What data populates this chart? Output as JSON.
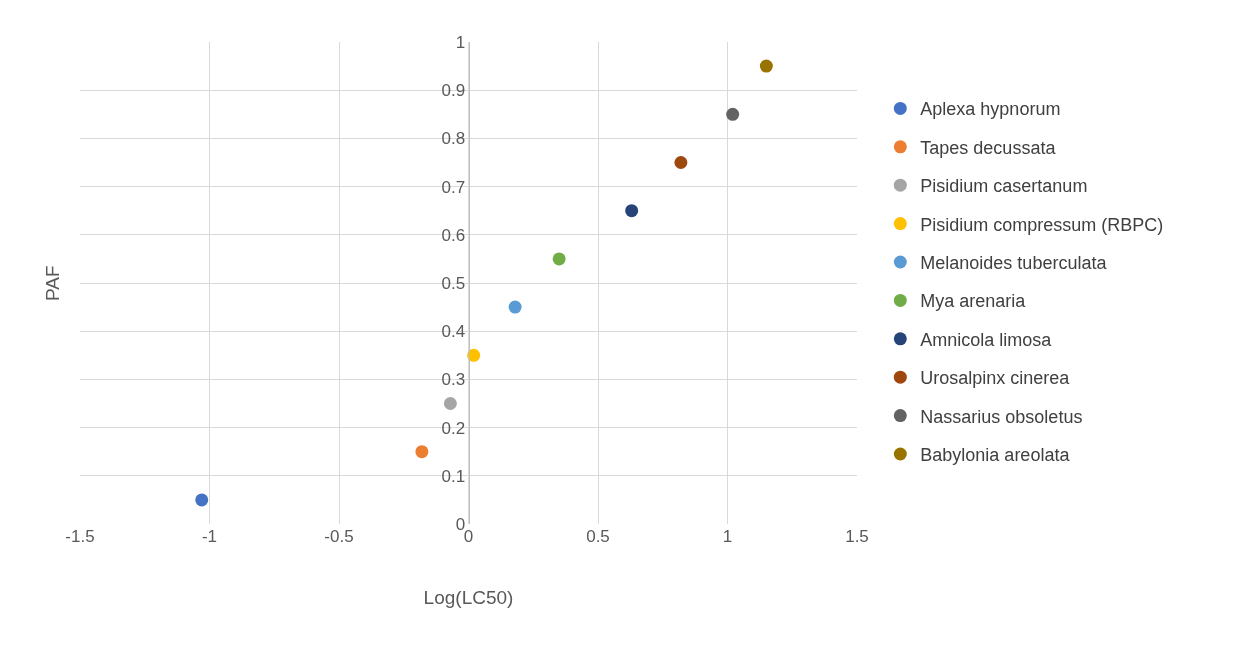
{
  "chart_data": {
    "type": "scatter",
    "xlabel": "Log(LC50)",
    "ylabel": "PAF",
    "marker": "circle",
    "grid": true,
    "legend": "right",
    "xlim": [
      -1.5,
      1.5
    ],
    "xticks": [
      -1.5,
      -1,
      -0.5,
      0,
      0.5,
      1,
      1.5
    ],
    "ylim": [
      0,
      1
    ],
    "yticks": [
      0,
      0.1,
      0.2,
      0.3,
      0.4,
      0.5,
      0.6,
      0.7,
      0.8,
      0.9,
      1
    ],
    "series": [
      {
        "name": "Aplexa hypnorum",
        "color": "#4472c4",
        "x": [
          -1.03
        ],
        "values": [
          0.05
        ]
      },
      {
        "name": "Tapes decussata",
        "color": "#ed7d31",
        "x": [
          -0.18
        ],
        "values": [
          0.15
        ]
      },
      {
        "name": "Pisidium casertanum",
        "color": "#a5a5a5",
        "x": [
          -0.07
        ],
        "values": [
          0.25
        ]
      },
      {
        "name": "Pisidium compressum (RBPC)",
        "color": "#ffc000",
        "x": [
          0.02
        ],
        "values": [
          0.35
        ]
      },
      {
        "name": "Melanoides tuberculata",
        "color": "#5b9bd5",
        "x": [
          0.18
        ],
        "values": [
          0.45
        ]
      },
      {
        "name": "Mya arenaria",
        "color": "#70ad47",
        "x": [
          0.35
        ],
        "values": [
          0.55
        ]
      },
      {
        "name": "Amnicola limosa",
        "color": "#264478",
        "x": [
          0.63
        ],
        "values": [
          0.65
        ]
      },
      {
        "name": "Urosalpinx cinerea",
        "color": "#9e480e",
        "x": [
          0.82
        ],
        "values": [
          0.75
        ]
      },
      {
        "name": "Nassarius obsoletus",
        "color": "#636363",
        "x": [
          1.02
        ],
        "values": [
          0.85
        ]
      },
      {
        "name": "Babylonia areolata",
        "color": "#997300",
        "x": [
          1.15
        ],
        "values": [
          0.95
        ]
      }
    ]
  }
}
